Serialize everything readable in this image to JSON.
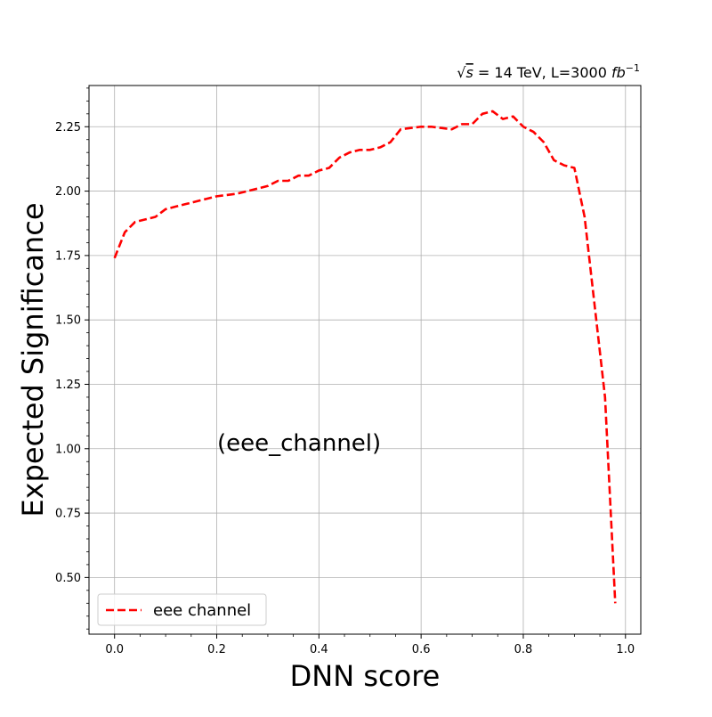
{
  "chart_data": {
    "type": "line",
    "xlabel": "DNN score",
    "ylabel": "Expected Significance",
    "header_text": {
      "sqrt_symbol": "√",
      "s_symbol": "s",
      "rest": " = 14 TeV, L=3000 ",
      "unit": "fb",
      "unit_exp": "−1"
    },
    "annotation": "(eee_channel)",
    "xlim": [
      -0.05,
      1.03
    ],
    "ylim": [
      0.28,
      2.41
    ],
    "xticks": [
      0.0,
      0.2,
      0.4,
      0.6,
      0.8,
      1.0
    ],
    "xtick_labels": [
      "0.0",
      "0.2",
      "0.4",
      "0.6",
      "0.8",
      "1.0"
    ],
    "yticks": [
      0.5,
      0.75,
      1.0,
      1.25,
      1.5,
      1.75,
      2.0,
      2.25
    ],
    "ytick_labels": [
      "0.50",
      "0.75",
      "1.00",
      "1.25",
      "1.50",
      "1.75",
      "2.00",
      "2.25"
    ],
    "grid": true,
    "legend_position": "lower-left",
    "series": [
      {
        "name": "eee channel",
        "color": "#ff0000",
        "style": "dashed",
        "x": [
          0.0,
          0.02,
          0.04,
          0.06,
          0.08,
          0.1,
          0.12,
          0.14,
          0.16,
          0.18,
          0.2,
          0.22,
          0.24,
          0.26,
          0.28,
          0.3,
          0.32,
          0.34,
          0.36,
          0.38,
          0.4,
          0.42,
          0.44,
          0.46,
          0.48,
          0.5,
          0.52,
          0.54,
          0.56,
          0.58,
          0.6,
          0.62,
          0.64,
          0.66,
          0.68,
          0.7,
          0.72,
          0.74,
          0.76,
          0.78,
          0.8,
          0.82,
          0.84,
          0.86,
          0.88,
          0.9,
          0.92,
          0.94,
          0.96,
          0.98
        ],
        "y": [
          1.74,
          1.84,
          1.88,
          1.89,
          1.9,
          1.93,
          1.94,
          1.95,
          1.96,
          1.97,
          1.98,
          1.985,
          1.99,
          2.0,
          2.01,
          2.02,
          2.04,
          2.04,
          2.06,
          2.06,
          2.08,
          2.09,
          2.13,
          2.15,
          2.16,
          2.16,
          2.17,
          2.19,
          2.24,
          2.245,
          2.25,
          2.25,
          2.245,
          2.24,
          2.26,
          2.26,
          2.3,
          2.31,
          2.28,
          2.29,
          2.25,
          2.23,
          2.19,
          2.12,
          2.1,
          2.09,
          1.9,
          1.55,
          1.2,
          0.4
        ]
      }
    ]
  }
}
